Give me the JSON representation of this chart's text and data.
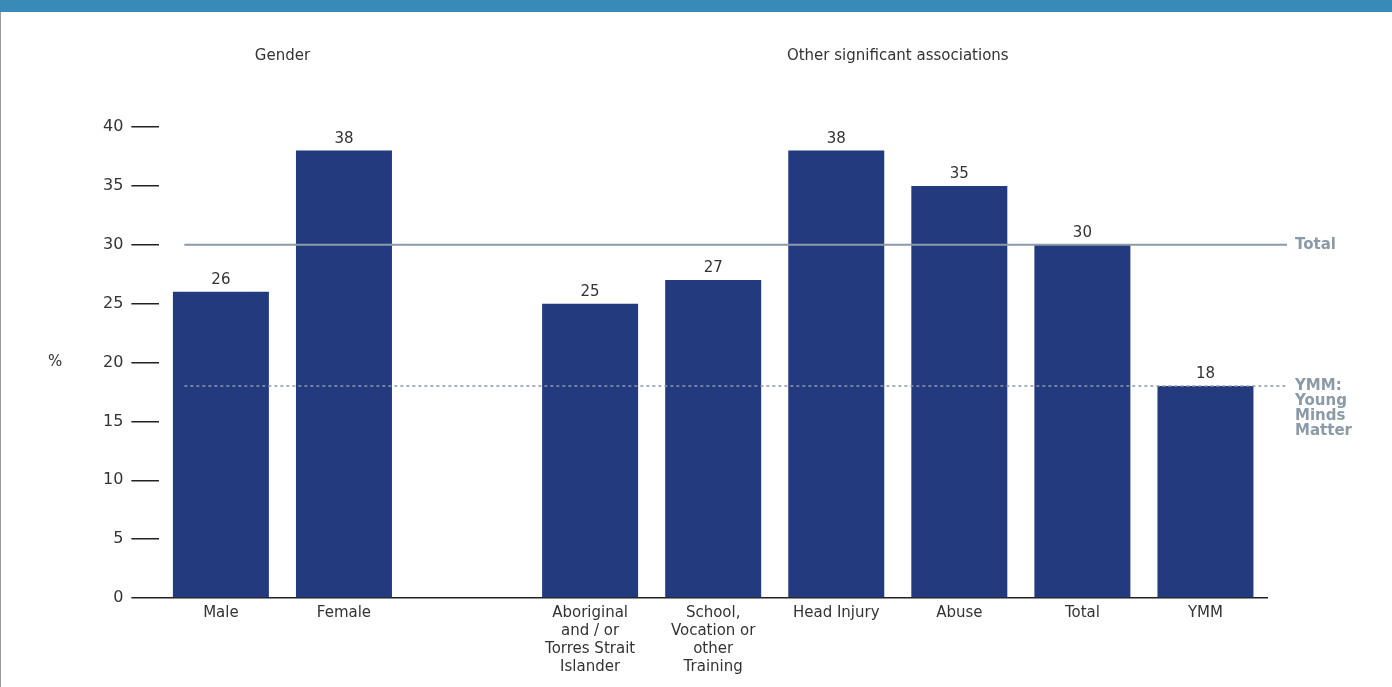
{
  "chart_data": {
    "type": "bar",
    "categories": [
      "Male",
      "Female",
      null,
      "Aboriginal and / or Torres Strait Islander",
      "School, Vocation or other Training",
      "Head Injury",
      "Abuse",
      "Total",
      "YMM"
    ],
    "values": [
      26,
      38,
      null,
      25,
      27,
      38,
      35,
      30,
      18
    ],
    "color": "#233a7e",
    "ylabel": "%",
    "ylim": [
      0,
      40
    ],
    "yticks": [
      0,
      5,
      10,
      15,
      20,
      25,
      30,
      35,
      40
    ],
    "data_labels": true,
    "grid": false,
    "legend": false,
    "annotations": [
      "Gender",
      "Other significant associations"
    ],
    "ref_lines": [
      {
        "axis": "y",
        "value": 30,
        "label": "Total",
        "color": "#8a9aa6",
        "line_style": "solid"
      },
      {
        "axis": "y",
        "value": 18,
        "label": "YMM: Young Minds Matter",
        "color": "#8a9aa6",
        "line_style": "dotted"
      }
    ]
  }
}
